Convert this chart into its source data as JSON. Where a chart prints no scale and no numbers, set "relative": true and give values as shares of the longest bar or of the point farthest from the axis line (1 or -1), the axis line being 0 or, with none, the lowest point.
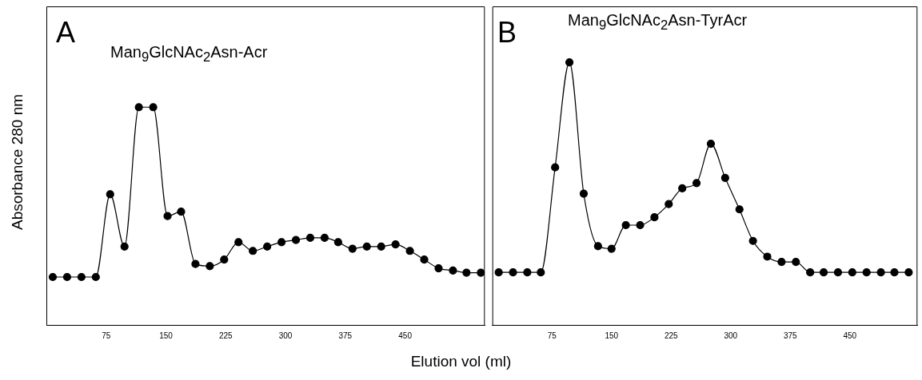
{
  "chart_data": [
    {
      "type": "line",
      "title": "A",
      "annotations": [
        "Man$_{9}$GlcNAc$_{2}$Asn-Acr"
      ],
      "ylabel": "Absorbance 280 nm",
      "xlabel": "Elution vol (ml)",
      "relative": true,
      "tick_labels": "x",
      "marker": "circle",
      "xlim": [
        0,
        550
      ],
      "xticks": [
        75,
        150,
        225,
        300,
        375,
        450
      ],
      "x": [
        8,
        26,
        44,
        62,
        80,
        98,
        116,
        134,
        152,
        169,
        187,
        205,
        223,
        241,
        259,
        277,
        295,
        313,
        331,
        349,
        366,
        384,
        402,
        420,
        438,
        456,
        474,
        492,
        510,
        527,
        545
      ],
      "series": [
        {
          "color": "#000000",
          "values": [
            0.22,
            0.22,
            0.22,
            0.22,
            0.6,
            0.36,
            1,
            1,
            0.5,
            0.52,
            0.28,
            0.27,
            0.3,
            0.38,
            0.34,
            0.36,
            0.38,
            0.39,
            0.4,
            0.4,
            0.38,
            0.35,
            0.36,
            0.36,
            0.37,
            0.34,
            0.3,
            0.26,
            0.25,
            0.24,
            0.24
          ]
        }
      ]
    },
    {
      "type": "line",
      "title": "B",
      "annotations": [
        "Man$_{9}$GlcNAc$_{2}$Asn-TyrAcr"
      ],
      "relative": true,
      "tick_labels": "x",
      "marker": "circle",
      "xlim": [
        0,
        535
      ],
      "xticks": [
        75,
        150,
        225,
        300,
        375,
        450
      ],
      "x": [
        8,
        26,
        44,
        61,
        79,
        97,
        115,
        133,
        150,
        168,
        186,
        204,
        222,
        239,
        257,
        275,
        293,
        311,
        328,
        346,
        364,
        382,
        400,
        417,
        435,
        453,
        471,
        489,
        506,
        524
      ],
      "series": [
        {
          "color": "#000000",
          "values": [
            0.2,
            0.2,
            0.2,
            0.2,
            0.6,
            1,
            0.5,
            0.3,
            0.29,
            0.38,
            0.38,
            0.41,
            0.46,
            0.52,
            0.54,
            0.69,
            0.56,
            0.44,
            0.32,
            0.26,
            0.24,
            0.24,
            0.2,
            0.2,
            0.2,
            0.2,
            0.2,
            0.2,
            0.2,
            0.2
          ]
        }
      ]
    }
  ]
}
